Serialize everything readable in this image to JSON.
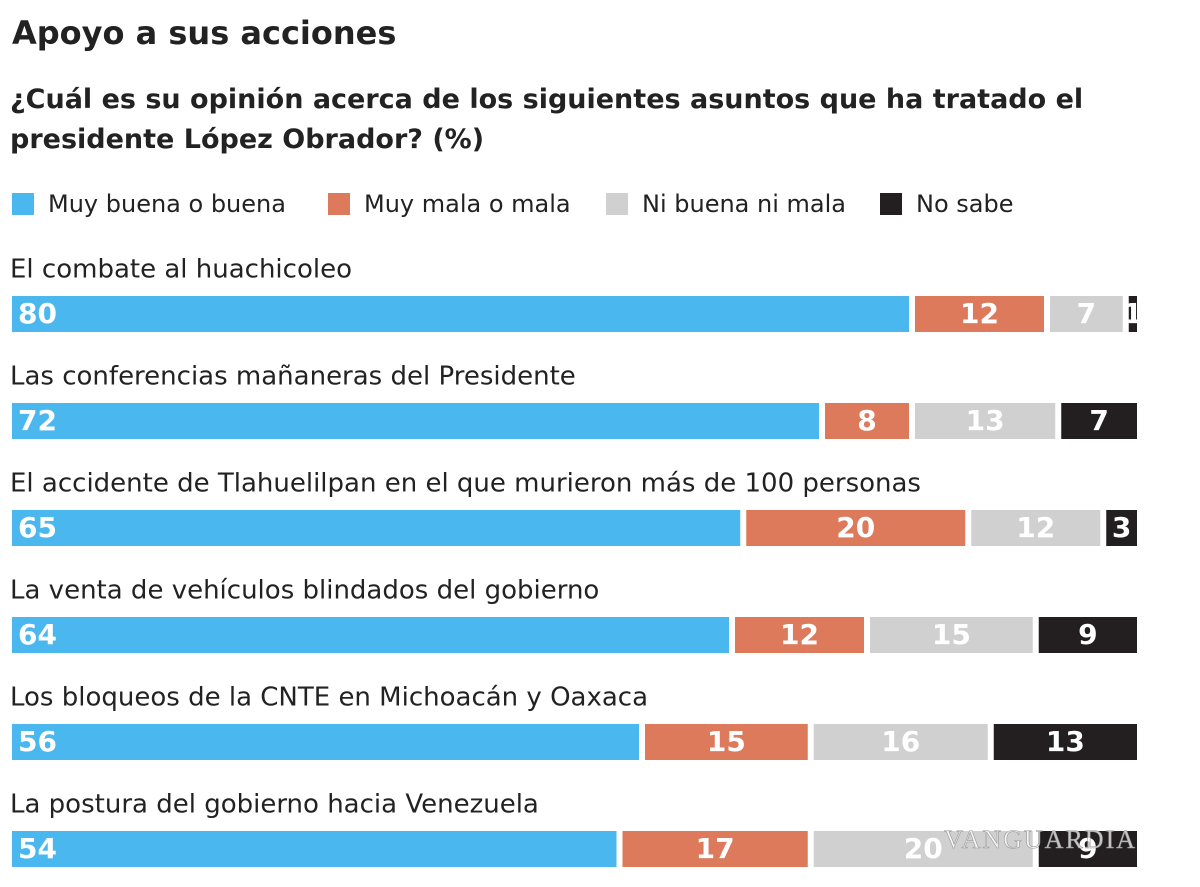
{
  "chart_data": {
    "type": "stacked-barh",
    "title": "Apoyo a sus acciones",
    "subtitle": "¿Cuál es su opinión acerca de los siguientes asuntos que ha tratado el presidente López Obrador? (%)",
    "categories": [
      "El combate al huachicoleo",
      "Las conferencias mañaneras del Presidente",
      "El accidente de Tlahuelilpan en el que murieron más de 100 personas",
      "La venta de vehículos blindados del gobierno",
      "Los bloqueos de la CNTE en Michoacán y Oaxaca",
      "La postura del gobierno hacia Venezuela"
    ],
    "series": [
      {
        "name": "Muy buena o buena",
        "color": "#4ab8ee",
        "values": [
          80,
          72,
          65,
          64,
          56,
          54
        ]
      },
      {
        "name": "Muy mala o mala",
        "color": "#dd7a5c",
        "values": [
          12,
          8,
          20,
          12,
          15,
          17
        ]
      },
      {
        "name": "Ni buena ni mala",
        "color": "#d0d0d0",
        "values": [
          7,
          13,
          12,
          15,
          16,
          20
        ]
      },
      {
        "name": "No sabe",
        "color": "#231f20",
        "values": [
          1,
          7,
          3,
          9,
          13,
          9
        ]
      }
    ],
    "xlim": [
      0,
      100
    ],
    "watermark": "VANGUARDIA"
  }
}
